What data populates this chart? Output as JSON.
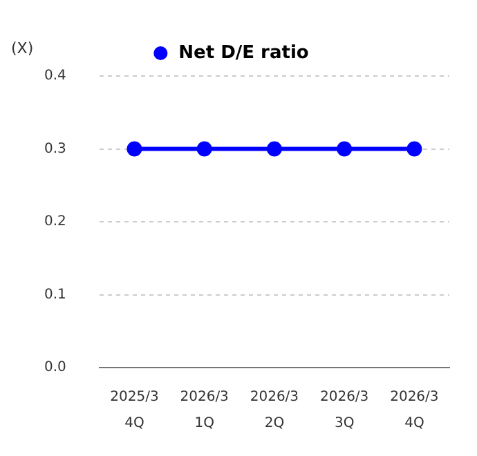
{
  "chart_data": {
    "type": "line",
    "ylabel": "(X)",
    "categories": [
      "2025/3\n4Q",
      "2026/3\n1Q",
      "2026/3\n2Q",
      "2026/3\n3Q",
      "2026/3\n4Q"
    ],
    "series": [
      {
        "name": "Net D/E ratio",
        "color": "#0000ff",
        "values": [
          0.3,
          0.3,
          0.3,
          0.3,
          0.3
        ]
      }
    ],
    "ylim": [
      0,
      0.4
    ],
    "yticks": [
      {
        "value": 0,
        "label": "0.0"
      },
      {
        "value": 0.1,
        "label": "0.1"
      },
      {
        "value": 0.2,
        "label": "0.2"
      },
      {
        "value": 0.3,
        "label": "0.3"
      },
      {
        "value": 0.4,
        "label": "0.4"
      }
    ],
    "grid": "y",
    "legend": "top",
    "marker": "circle",
    "line_style": "solid"
  }
}
